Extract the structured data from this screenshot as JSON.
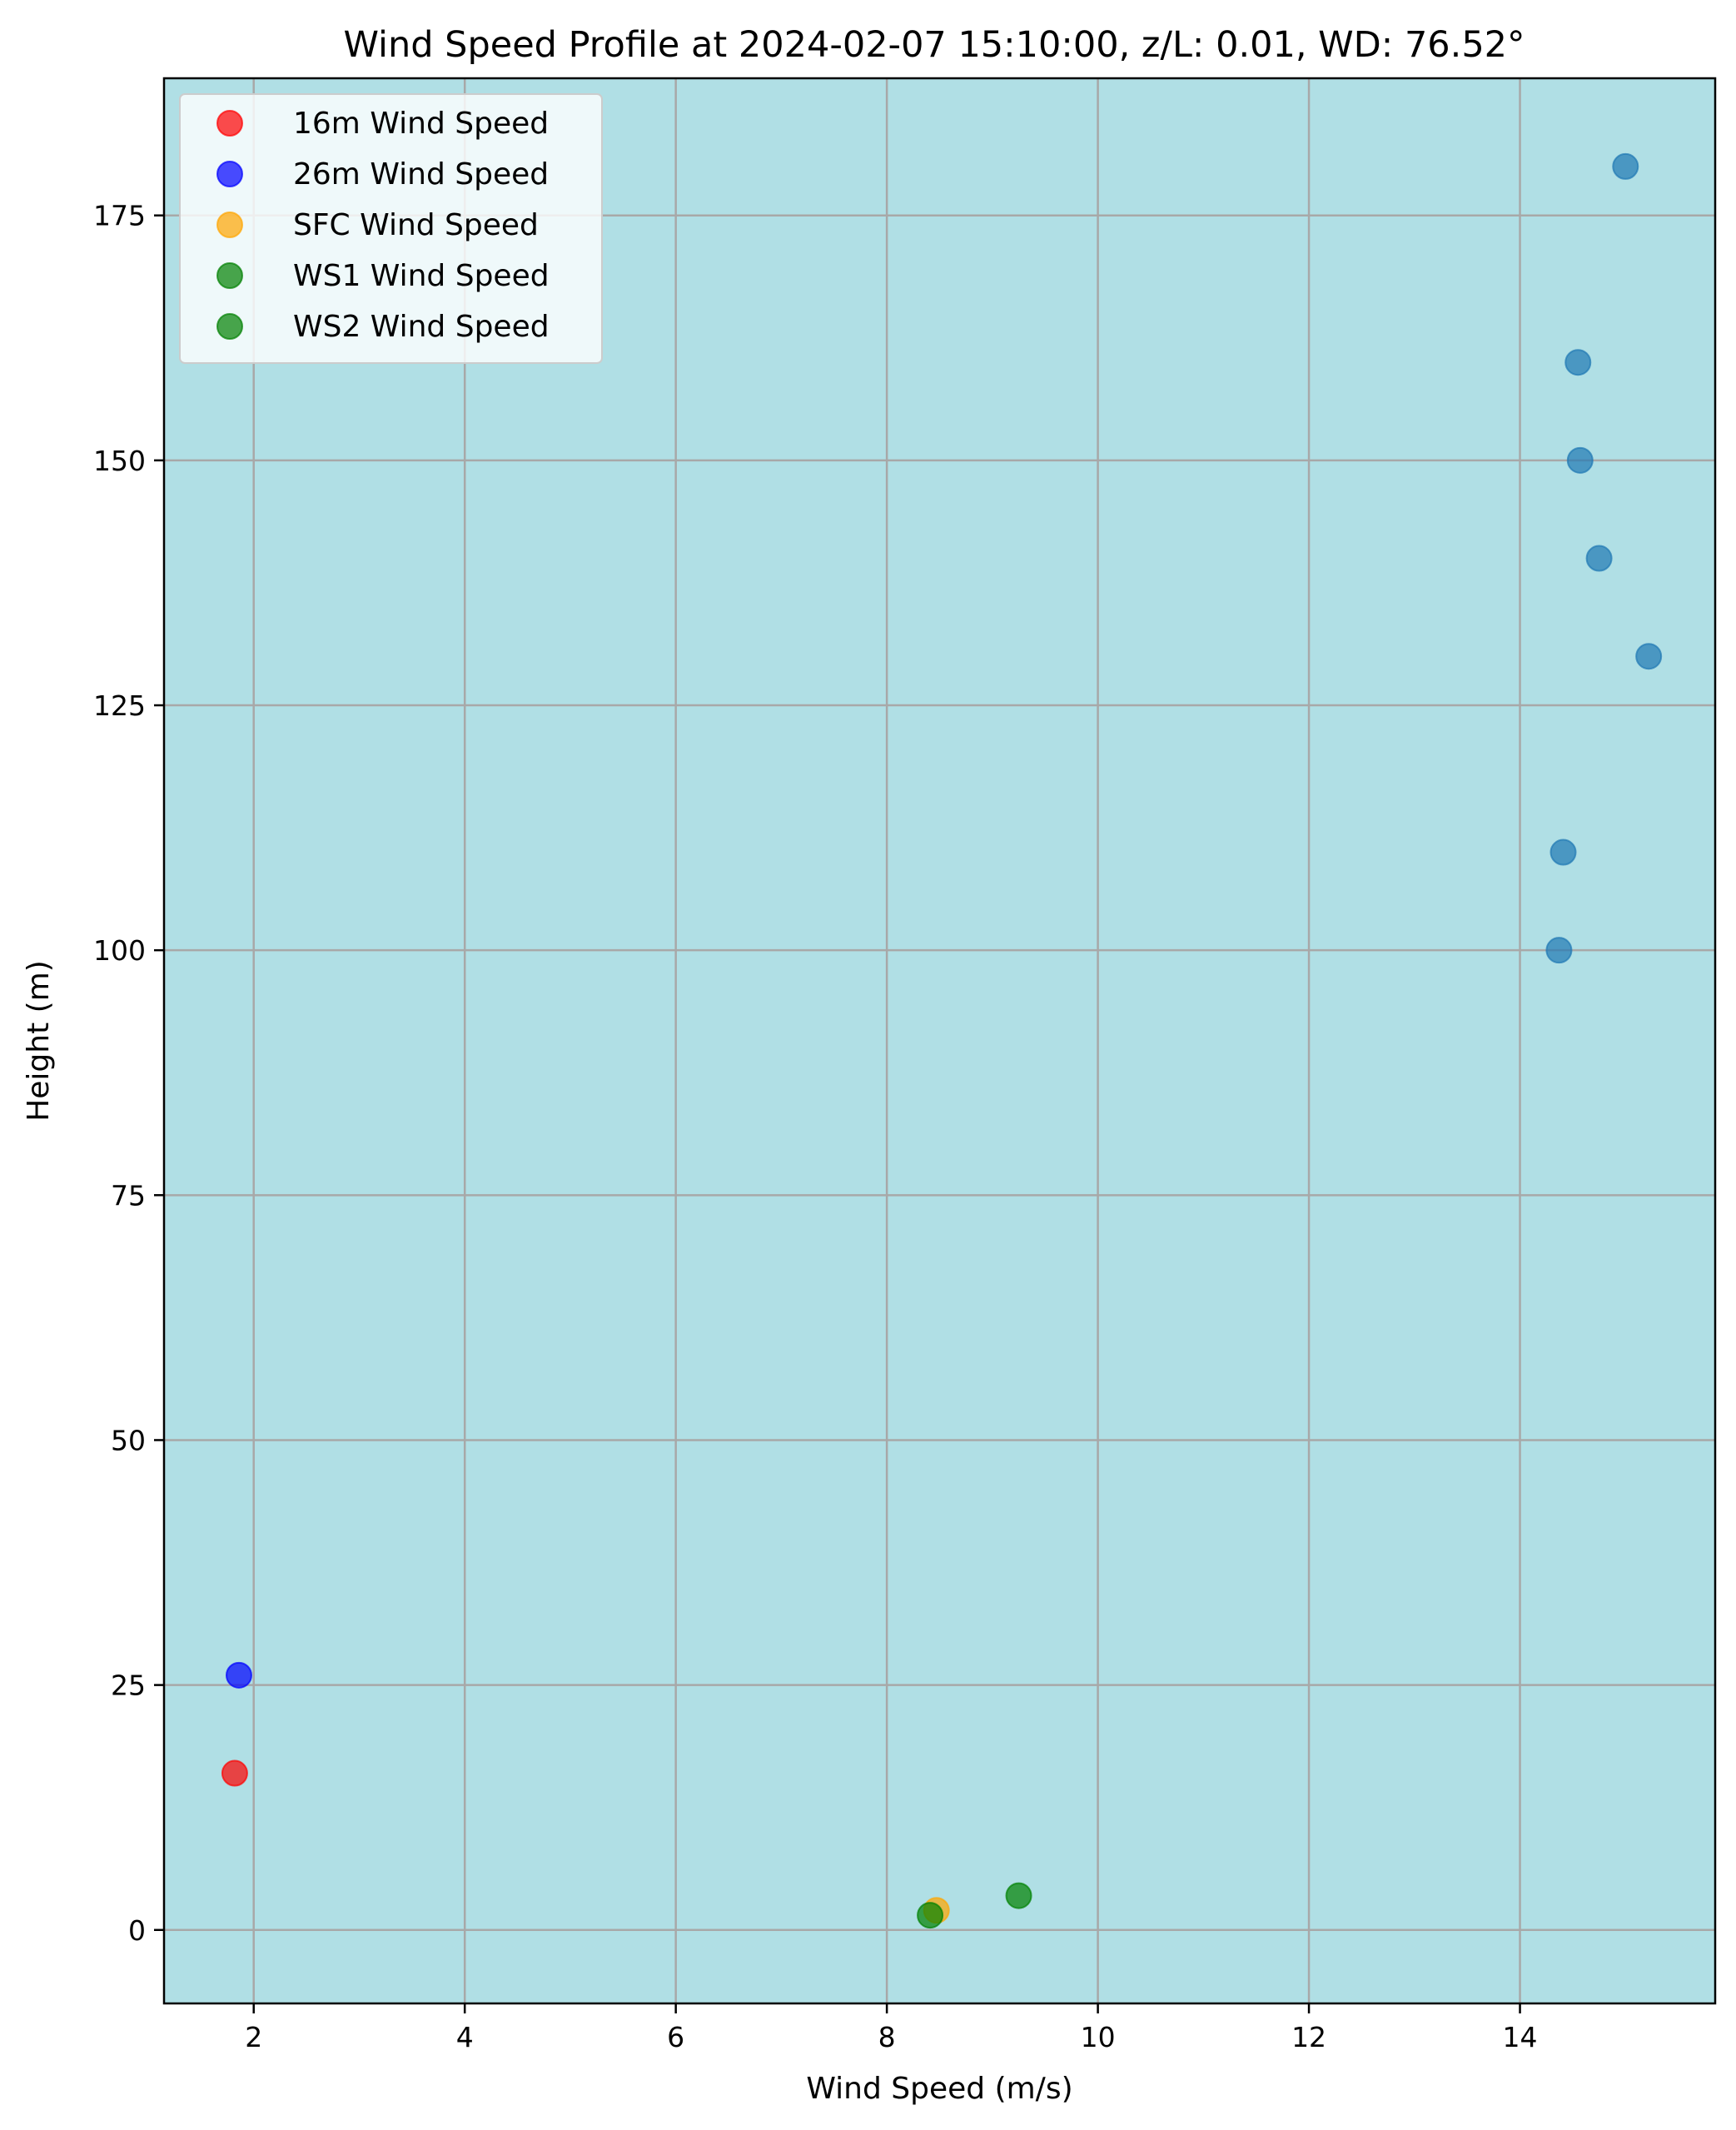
{
  "chart_data": {
    "type": "scatter",
    "title": "Wind Speed Profile at 2024-02-07 15:10:00, z/L: 0.01, WD: 76.52°",
    "xlabel": "Wind Speed (m/s)",
    "ylabel": "Height (m)",
    "xlim": [
      1.15,
      15.85
    ],
    "ylim": [
      -7.5,
      189
    ],
    "xticks": [
      2,
      4,
      6,
      8,
      10,
      12,
      14
    ],
    "yticks": [
      0,
      25,
      50,
      75,
      100,
      125,
      150,
      175
    ],
    "grid": true,
    "legend_position": "top-left",
    "background_color": "#b0dfe5",
    "series": [
      {
        "name": "",
        "color": "#1f77b4",
        "legend": false,
        "points": [
          [
            15.0,
            180
          ],
          [
            14.55,
            160
          ],
          [
            14.57,
            150
          ],
          [
            14.75,
            140
          ],
          [
            15.22,
            130
          ],
          [
            14.41,
            110
          ],
          [
            14.37,
            100
          ]
        ]
      },
      {
        "name": "16m Wind Speed",
        "color": "#ff0000",
        "legend": true,
        "points": [
          [
            1.82,
            16
          ]
        ]
      },
      {
        "name": "26m Wind Speed",
        "color": "#0000ff",
        "legend": true,
        "points": [
          [
            1.86,
            26
          ]
        ]
      },
      {
        "name": "SFC Wind Speed",
        "color": "#ffa500",
        "legend": true,
        "points": [
          [
            8.47,
            2
          ]
        ]
      },
      {
        "name": "WS1 Wind Speed",
        "color": "#008000",
        "legend": true,
        "points": [
          [
            9.25,
            3.5
          ]
        ]
      },
      {
        "name": "WS2 Wind Speed",
        "color": "#008000",
        "legend": true,
        "points": [
          [
            8.41,
            1.5
          ]
        ]
      }
    ]
  }
}
